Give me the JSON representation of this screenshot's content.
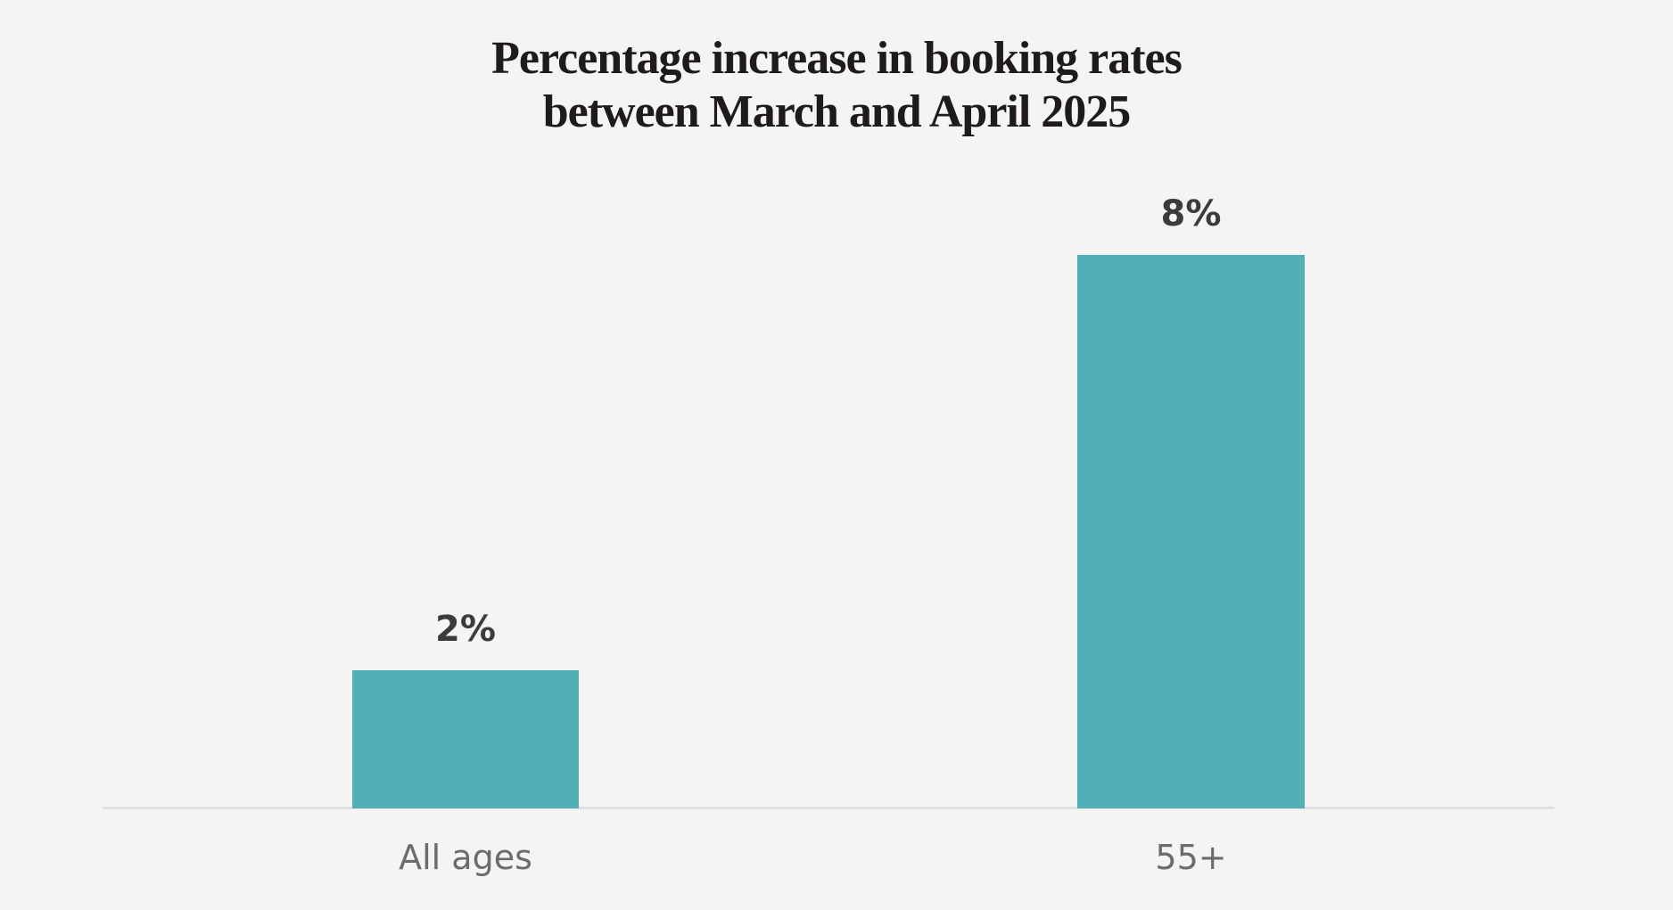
{
  "title": {
    "line1": "Percentage increase in booking rates",
    "line2": "between March and April 2025"
  },
  "chart_data": {
    "type": "bar",
    "title": "Percentage increase in booking rates between March and April 2025",
    "categories": [
      "All ages",
      "55+"
    ],
    "values": [
      2,
      8
    ],
    "value_labels": [
      "2%",
      "8%"
    ],
    "xlabel": "",
    "ylabel": "",
    "ylim": [
      0,
      8
    ],
    "grid": false,
    "legend": false,
    "bar_color": "#51AFB8",
    "axis_line_color": "#DFE2E2",
    "background_color": "#F4F4F3",
    "title_color": "#1F1B1C",
    "value_label_color": "#3B3B3B",
    "category_label_color": "#6C6C6C"
  }
}
